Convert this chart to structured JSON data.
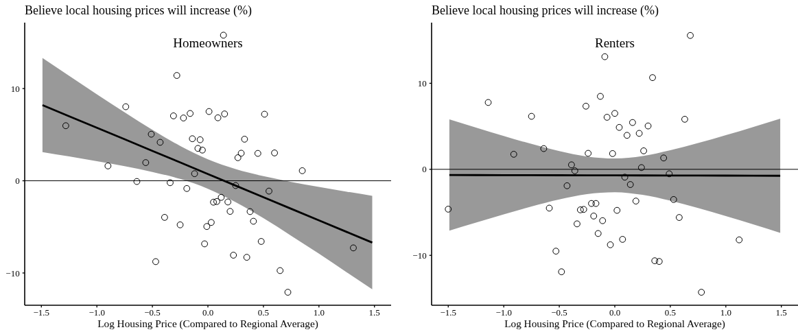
{
  "chart_data": [
    {
      "type": "scatter",
      "title": "Homeowners",
      "xlabel": "Log Housing Price (Compared to Regional Average)",
      "ylabel": "Believe local housing prices will increase (%)",
      "xlim": [
        -1.65,
        1.65
      ],
      "ylim": [
        -13.5,
        17.15
      ],
      "xticks": [
        {
          "value": -1.5,
          "label": "−1.5"
        },
        {
          "value": -1,
          "label": "−1.0"
        },
        {
          "value": -0.5,
          "label": "−0.5"
        },
        {
          "value": 0,
          "label": "0.0"
        },
        {
          "value": 0.5,
          "label": "0.5"
        },
        {
          "value": 1,
          "label": "1.0"
        },
        {
          "value": 1.5,
          "label": "1.5"
        }
      ],
      "yticks": [
        {
          "value": -10,
          "label": "−10"
        },
        {
          "value": 0,
          "label": "0"
        },
        {
          "value": 10,
          "label": "10"
        }
      ],
      "ref_lines": [
        {
          "axis": "y",
          "value": 0,
          "color": "#000000"
        }
      ],
      "series": [
        {
          "type": "scatter",
          "color": "#000000",
          "marker": "circle",
          "x": [
            0.14,
            -0.28,
            -0.74,
            -1.28,
            -0.31,
            -0.22,
            -0.16,
            0.01,
            0.09,
            0.15,
            0.51,
            -0.51,
            -0.43,
            -0.14,
            -0.07,
            0.33,
            -0.09,
            -0.05,
            0.3,
            0.27,
            0.45,
            0.6,
            -0.9,
            -0.56,
            0.85,
            -0.12,
            -0.64,
            -0.34,
            -0.19,
            0.25,
            0.55,
            0.12,
            0.05,
            0.08,
            0.18,
            0.2,
            0.38,
            -0.39,
            -0.25,
            0.03,
            -0.01,
            0.41,
            0.48,
            -0.03,
            0.23,
            0.35,
            -0.47,
            0.65,
            0.72,
            1.31
          ],
          "values": [
            15.79,
            11.42,
            8.03,
            5.97,
            7.04,
            6.81,
            7.3,
            7.51,
            6.83,
            7.25,
            7.22,
            5.05,
            4.17,
            4.56,
            4.45,
            4.51,
            3.51,
            3.33,
            2.99,
            2.5,
            2.97,
            3.02,
            1.61,
            1.97,
            1.09,
            0.77,
            -0.08,
            -0.21,
            -0.84,
            -0.52,
            -1.12,
            -1.8,
            -2.32,
            -2.25,
            -2.3,
            -3.32,
            -3.34,
            -3.97,
            -4.78,
            -4.52,
            -4.96,
            -4.39,
            -6.58,
            -6.84,
            -8.07,
            -8.3,
            -8.77,
            -9.74,
            -12.09,
            -7.28
          ]
        },
        {
          "type": "line",
          "color": "#000000",
          "x": [
            -1.49,
            -1.25,
            -1,
            -0.75,
            -0.5,
            -0.25,
            0,
            0.25,
            0.5,
            0.75,
            1,
            1.25,
            1.48
          ],
          "values": [
            8.21,
            7.0,
            5.75,
            4.5,
            3.24,
            1.99,
            0.73,
            -0.53,
            -1.78,
            -3.04,
            -4.29,
            -5.55,
            -6.7
          ],
          "lower": [
            3.11,
            2.64,
            2.13,
            1.58,
            0.96,
            0.2,
            -0.87,
            -2.32,
            -4.06,
            -5.96,
            -7.91,
            -9.92,
            -11.77
          ],
          "upper": [
            13.31,
            11.38,
            9.37,
            7.42,
            5.52,
            3.78,
            2.33,
            1.27,
            0.5,
            -0.12,
            -0.67,
            -1.18,
            -1.63
          ]
        }
      ]
    },
    {
      "type": "scatter",
      "title": "Renters",
      "xlabel": "Log Housing Price (Compared to Regional Average)",
      "ylabel": "Believe local housing prices will increase (%)",
      "xlim": [
        -1.65,
        1.65
      ],
      "ylim": [
        -15.8,
        17.05
      ],
      "xticks": [
        {
          "value": -1.5,
          "label": "−1.5"
        },
        {
          "value": -1,
          "label": "−1.0"
        },
        {
          "value": -0.5,
          "label": "−0.5"
        },
        {
          "value": 0,
          "label": "0.0"
        },
        {
          "value": 0.5,
          "label": "0.5"
        },
        {
          "value": 1,
          "label": "1.0"
        },
        {
          "value": 1.5,
          "label": "1.5"
        }
      ],
      "yticks": [
        {
          "value": -10,
          "label": "−10"
        },
        {
          "value": 0,
          "label": "0"
        },
        {
          "value": 10,
          "label": "10"
        }
      ],
      "ref_lines": [
        {
          "axis": "y",
          "value": 0,
          "color": "#000000"
        }
      ],
      "series": [
        {
          "type": "scatter",
          "color": "#000000",
          "marker": "circle",
          "x": [
            0.68,
            -0.09,
            0.34,
            -1.14,
            -0.13,
            -0.26,
            -0.75,
            0.0,
            -0.07,
            0.63,
            0.16,
            0.3,
            0.04,
            0.22,
            0.11,
            -0.64,
            -0.91,
            -0.24,
            -0.02,
            0.26,
            0.44,
            -0.39,
            0.24,
            -0.36,
            0.49,
            0.09,
            0.14,
            -0.43,
            0.19,
            0.53,
            -0.21,
            -0.17,
            -1.5,
            -0.59,
            -0.31,
            -0.28,
            0.02,
            -0.19,
            0.58,
            -0.11,
            -0.34,
            -0.15,
            0.07,
            1.12,
            -0.04,
            -0.53,
            0.36,
            0.4,
            -0.48,
            0.78
          ],
          "values": [
            15.56,
            13.09,
            10.66,
            7.77,
            8.48,
            7.34,
            6.16,
            6.5,
            6.05,
            5.82,
            5.44,
            5.04,
            4.87,
            4.18,
            3.95,
            2.41,
            1.75,
            1.86,
            1.83,
            2.15,
            1.32,
            0.52,
            0.2,
            -0.17,
            -0.52,
            -0.91,
            -1.77,
            -1.91,
            -3.69,
            -3.51,
            -3.97,
            -3.97,
            -4.63,
            -4.51,
            -4.71,
            -4.66,
            -4.77,
            -5.43,
            -5.6,
            -5.97,
            -6.34,
            -7.46,
            -8.14,
            -8.2,
            -8.77,
            -9.51,
            -10.63,
            -10.71,
            -11.91,
            -14.29
          ]
        },
        {
          "type": "line",
          "color": "#000000",
          "x": [
            -1.49,
            -1.25,
            -1,
            -0.75,
            -0.5,
            -0.25,
            0,
            0.25,
            0.5,
            0.75,
            1,
            1.25,
            1.49
          ],
          "values": [
            -0.66,
            -0.67,
            -0.68,
            -0.68,
            -0.69,
            -0.7,
            -0.7,
            -0.71,
            -0.72,
            -0.72,
            -0.73,
            -0.74,
            -0.75
          ],
          "lower": [
            -7.13,
            -6.19,
            -5.23,
            -4.32,
            -3.5,
            -2.88,
            -2.66,
            -2.97,
            -3.65,
            -4.5,
            -5.44,
            -6.42,
            -7.38
          ],
          "upper": [
            5.81,
            4.85,
            3.88,
            2.95,
            2.12,
            1.49,
            1.26,
            1.55,
            2.22,
            3.05,
            3.97,
            4.94,
            5.89
          ]
        }
      ]
    }
  ]
}
